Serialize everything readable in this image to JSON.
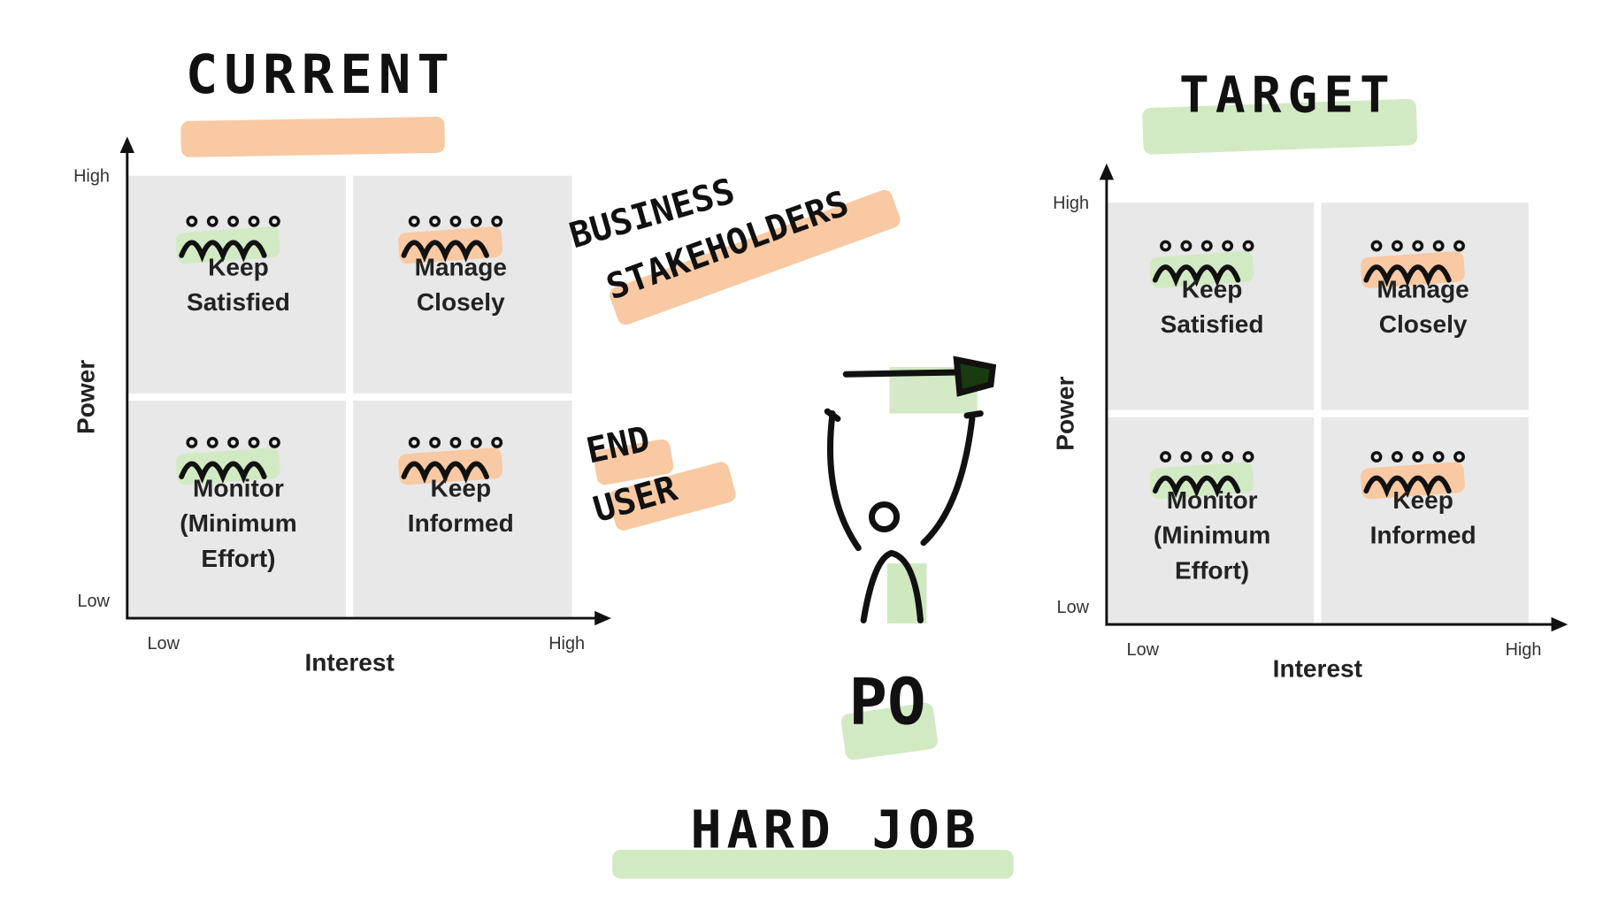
{
  "matrices": [
    {
      "title": "CURRENT",
      "y_axis": {
        "label": "Power",
        "high": "High",
        "low": "Low"
      },
      "x_axis": {
        "label": "Interest",
        "low": "Low",
        "high": "High"
      },
      "quadrants": [
        [
          "Keep",
          "Satisfied"
        ],
        [
          "Manage",
          "Closely"
        ],
        [
          "Monitor",
          "(Minimum",
          "Effort)"
        ],
        [
          "Keep",
          "Informed"
        ]
      ]
    },
    {
      "title": "TARGET",
      "y_axis": {
        "label": "Power",
        "high": "High",
        "low": "Low"
      },
      "x_axis": {
        "label": "Interest",
        "low": "Low",
        "high": "High"
      },
      "quadrants": [
        [
          "Keep",
          "Satisfied"
        ],
        [
          "Manage",
          "Closely"
        ],
        [
          "Monitor",
          "(Minimum",
          "Effort)"
        ],
        [
          "Keep",
          "Informed"
        ]
      ]
    }
  ],
  "annotations": {
    "business_stakeholders": [
      "BUSINESS",
      "STAKEHOLDERS"
    ],
    "end_user": [
      "END",
      "USER"
    ],
    "role": "PO",
    "caption": "HARD JOB"
  }
}
